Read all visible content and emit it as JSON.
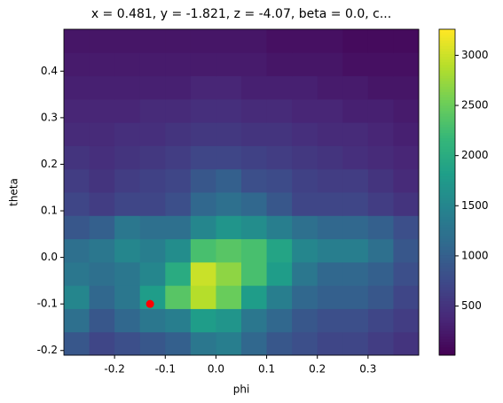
{
  "chart_data": {
    "type": "heatmap",
    "title": "x = 0.481, y = -1.821, z = -4.07, beta = 0.0, c...",
    "xlabel": "phi",
    "ylabel": "theta",
    "colormap": "viridis",
    "x_edges": [
      -0.3,
      -0.25,
      -0.2,
      -0.15,
      -0.1,
      -0.05,
      0.0,
      0.05,
      0.1,
      0.15,
      0.2,
      0.25,
      0.3,
      0.35,
      0.4
    ],
    "y_edges": [
      -0.21,
      -0.16,
      -0.11,
      -0.06,
      -0.01,
      0.04,
      0.09,
      0.14,
      0.19,
      0.24,
      0.29,
      0.34,
      0.39,
      0.44,
      0.49
    ],
    "values": [
      [
        900,
        700,
        800,
        900,
        1000,
        1300,
        1400,
        1100,
        900,
        800,
        700,
        700,
        600,
        500
      ],
      [
        1200,
        900,
        1100,
        1300,
        1400,
        1800,
        1700,
        1300,
        1100,
        900,
        800,
        800,
        700,
        600
      ],
      [
        1500,
        1100,
        1300,
        1800,
        2400,
        2900,
        2500,
        1800,
        1400,
        1100,
        1000,
        1000,
        900,
        700
      ],
      [
        1300,
        1200,
        1300,
        1500,
        2000,
        3000,
        2700,
        2300,
        1800,
        1300,
        1100,
        1100,
        1000,
        800
      ],
      [
        1200,
        1300,
        1500,
        1400,
        1600,
        2300,
        2400,
        2300,
        1900,
        1500,
        1400,
        1400,
        1200,
        900
      ],
      [
        900,
        1000,
        1300,
        1200,
        1200,
        1500,
        1700,
        1600,
        1400,
        1200,
        1100,
        1100,
        1000,
        800
      ],
      [
        700,
        600,
        700,
        700,
        800,
        1100,
        1200,
        1100,
        900,
        700,
        700,
        700,
        600,
        500
      ],
      [
        600,
        500,
        600,
        650,
        700,
        900,
        1000,
        800,
        750,
        650,
        600,
        600,
        500,
        400
      ],
      [
        500,
        450,
        500,
        550,
        600,
        700,
        700,
        650,
        600,
        550,
        500,
        450,
        400,
        350
      ],
      [
        400,
        400,
        450,
        450,
        500,
        550,
        550,
        500,
        500,
        450,
        400,
        400,
        350,
        300
      ],
      [
        350,
        350,
        350,
        400,
        400,
        450,
        450,
        400,
        400,
        350,
        350,
        300,
        300,
        250
      ],
      [
        300,
        300,
        300,
        300,
        300,
        350,
        350,
        300,
        300,
        300,
        250,
        250,
        200,
        200
      ],
      [
        250,
        250,
        250,
        250,
        250,
        250,
        250,
        250,
        200,
        200,
        200,
        150,
        150,
        150
      ],
      [
        200,
        200,
        200,
        200,
        200,
        200,
        200,
        200,
        150,
        150,
        150,
        100,
        100,
        100
      ]
    ],
    "xlim": [
      -0.3,
      0.4
    ],
    "ylim": [
      -0.21,
      0.49
    ],
    "xticks": [
      -0.2,
      -0.1,
      0.0,
      0.1,
      0.2,
      0.3
    ],
    "yticks": [
      -0.2,
      -0.1,
      0.0,
      0.1,
      0.2,
      0.3,
      0.4
    ],
    "clim": [
      10,
      3260
    ],
    "cticks": [
      500,
      1000,
      1500,
      2000,
      2500,
      3000
    ],
    "point": {
      "x": -0.13,
      "y": -0.1,
      "color": "red"
    }
  }
}
